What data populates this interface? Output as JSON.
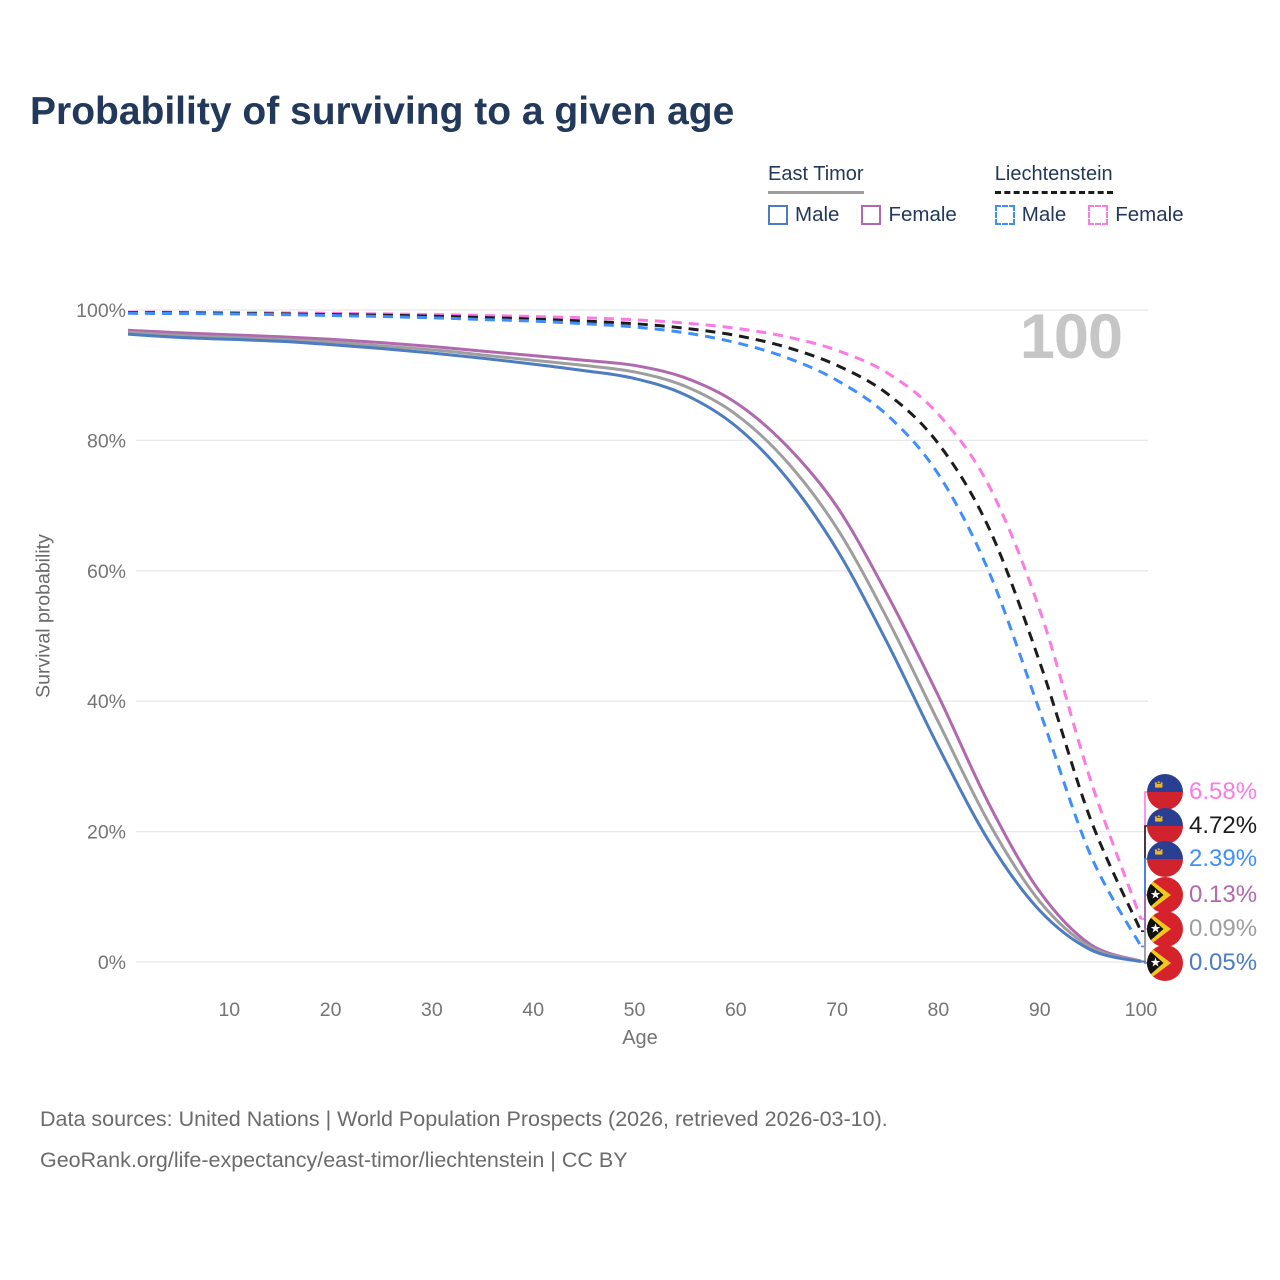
{
  "title": "Probability of surviving to a given age",
  "watermark": "100",
  "legend": {
    "groups": [
      {
        "name": "East Timor",
        "underline_color": "#9e9e9e",
        "underline_style": "solid",
        "items": [
          {
            "label": "Male",
            "color": "#4d7cc0",
            "dashed": false
          },
          {
            "label": "Female",
            "color": "#b069ae",
            "dashed": false
          }
        ]
      },
      {
        "name": "Liechtenstein",
        "underline_color": "#1c1c1c",
        "underline_style": "dashed",
        "items": [
          {
            "label": "Male",
            "color": "#3f8efc",
            "dashed": true
          },
          {
            "label": "Female",
            "color": "#fc7ae4",
            "dashed": true
          }
        ]
      }
    ]
  },
  "axes": {
    "x_label": "Age",
    "y_label": "Survival probability",
    "x_ticks": [
      10,
      20,
      30,
      40,
      50,
      60,
      70,
      80,
      90,
      100
    ],
    "y_tick_values": [
      0,
      20,
      40,
      60,
      80,
      100
    ],
    "y_tick_labels": [
      "0%",
      "20%",
      "40%",
      "60%",
      "80%",
      "100%"
    ]
  },
  "chart_data": {
    "type": "line",
    "title": "Probability of surviving to a given age",
    "xlabel": "Age",
    "ylabel": "Survival probability",
    "xlim": [
      0,
      100
    ],
    "ylim": [
      0,
      100
    ],
    "grid": "horizontal",
    "legend_position": "top-right",
    "x": [
      0,
      5,
      10,
      15,
      20,
      25,
      30,
      35,
      40,
      45,
      50,
      55,
      60,
      65,
      70,
      75,
      80,
      85,
      90,
      95,
      100
    ],
    "series": [
      {
        "name": "Liechtenstein Female",
        "country": "Liechtenstein",
        "sex": "Female",
        "style": "dashed",
        "color": "#fc7ae4",
        "flag": "liechtenstein",
        "end_label": "6.58%",
        "values": [
          99.7,
          99.65,
          99.6,
          99.55,
          99.5,
          99.4,
          99.3,
          99.15,
          99.0,
          98.8,
          98.5,
          98.0,
          97.2,
          95.9,
          93.8,
          90.3,
          84.0,
          73.0,
          54.0,
          28.0,
          6.58
        ]
      },
      {
        "name": "Liechtenstein Both sexes",
        "country": "Liechtenstein",
        "sex": "Both sexes",
        "style": "dashed",
        "color": "#1c1c1c",
        "flag": "liechtenstein",
        "end_label": "4.72%",
        "values": [
          99.6,
          99.55,
          99.5,
          99.4,
          99.3,
          99.2,
          99.05,
          98.85,
          98.6,
          98.3,
          97.9,
          97.2,
          96.1,
          94.3,
          91.5,
          87.1,
          79.5,
          66.5,
          46.0,
          22.0,
          4.72
        ]
      },
      {
        "name": "Liechtenstein Male",
        "country": "Liechtenstein",
        "sex": "Male",
        "style": "dashed",
        "color": "#3f8efc",
        "flag": "liechtenstein",
        "end_label": "2.39%",
        "values": [
          99.5,
          99.45,
          99.4,
          99.3,
          99.15,
          99.0,
          98.8,
          98.55,
          98.3,
          97.9,
          97.4,
          96.5,
          95.0,
          92.7,
          89.2,
          83.8,
          74.8,
          59.8,
          38.5,
          16.5,
          2.39
        ]
      },
      {
        "name": "East Timor Female",
        "country": "East Timor",
        "sex": "Female",
        "style": "solid",
        "color": "#b069ae",
        "flag": "east-timor",
        "end_label": "0.13%",
        "values": [
          96.9,
          96.5,
          96.2,
          95.9,
          95.5,
          95.0,
          94.4,
          93.7,
          93.0,
          92.3,
          91.5,
          89.6,
          85.8,
          79.2,
          69.8,
          56.2,
          40.8,
          24.2,
          10.8,
          2.7,
          0.13
        ]
      },
      {
        "name": "East Timor Both sexes",
        "country": "East Timor",
        "sex": "Both sexes",
        "style": "solid",
        "color": "#9e9e9e",
        "flag": "east-timor",
        "end_label": "0.09%",
        "values": [
          96.6,
          96.1,
          95.8,
          95.5,
          95.1,
          94.5,
          93.9,
          93.1,
          92.3,
          91.5,
          90.5,
          88.3,
          84.0,
          76.8,
          66.5,
          52.5,
          36.8,
          21.3,
          9.3,
          2.3,
          0.09
        ]
      },
      {
        "name": "East Timor Male",
        "country": "East Timor",
        "sex": "Male",
        "style": "solid",
        "color": "#4d7cc0",
        "flag": "east-timor",
        "end_label": "0.05%",
        "values": [
          96.3,
          95.8,
          95.5,
          95.2,
          94.7,
          94.1,
          93.4,
          92.6,
          91.7,
          90.7,
          89.5,
          87.0,
          82.2,
          74.3,
          63.2,
          48.8,
          33.0,
          18.5,
          7.9,
          1.9,
          0.05
        ]
      }
    ]
  },
  "caption": {
    "line1": "Data sources: United Nations | World Population Prospects (2026, retrieved 2026-03-10).",
    "line2": "GeoRank.org/life-expectancy/east-timor/liechtenstein | CC BY"
  },
  "colors": {
    "title_text": "#23395b",
    "axis_text": "#757575",
    "caption_text": "#6b6b6b",
    "grid": "#e8e8e8",
    "watermark": "#c6c6c6"
  }
}
